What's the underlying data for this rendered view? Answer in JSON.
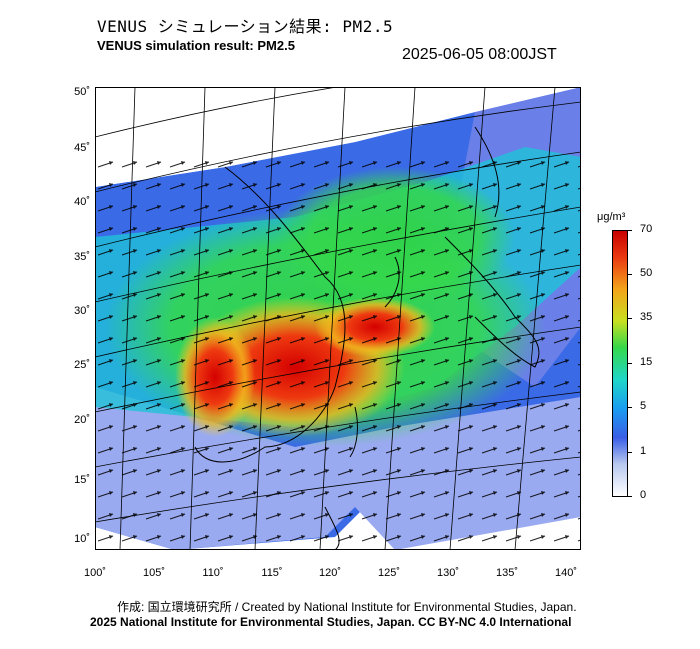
{
  "title_jp": "VENUS シミュレーション結果: PM2.5",
  "title_en": "VENUS simulation result: PM2.5",
  "timestamp": "2025-06-05 08:00JST",
  "map": {
    "lat_labels": [
      "50˚",
      "45˚",
      "40˚",
      "35˚",
      "30˚",
      "25˚",
      "20˚",
      "15˚",
      "10˚"
    ],
    "lon_labels": [
      "100˚",
      "105˚",
      "110˚",
      "115˚",
      "120˚",
      "125˚",
      "130˚",
      "135˚",
      "140˚"
    ],
    "field": "PM2.5 concentration with wind vectors",
    "high_region": "eastern China / East China Sea",
    "colors": {
      "low": "#3a5ee6",
      "mid": "#35d84a",
      "high": "#ea3a12"
    }
  },
  "colorbar": {
    "unit": "μg/m³",
    "ticks": [
      "70",
      "50",
      "35",
      "15",
      "5",
      "1",
      "0"
    ]
  },
  "footer": {
    "credit": "作成: 国立環境研究所 / Created by National Institute for Environmental Studies, Japan.",
    "license": "2025 National Institute for Environmental Studies, Japan. CC BY-NC 4.0 International"
  }
}
